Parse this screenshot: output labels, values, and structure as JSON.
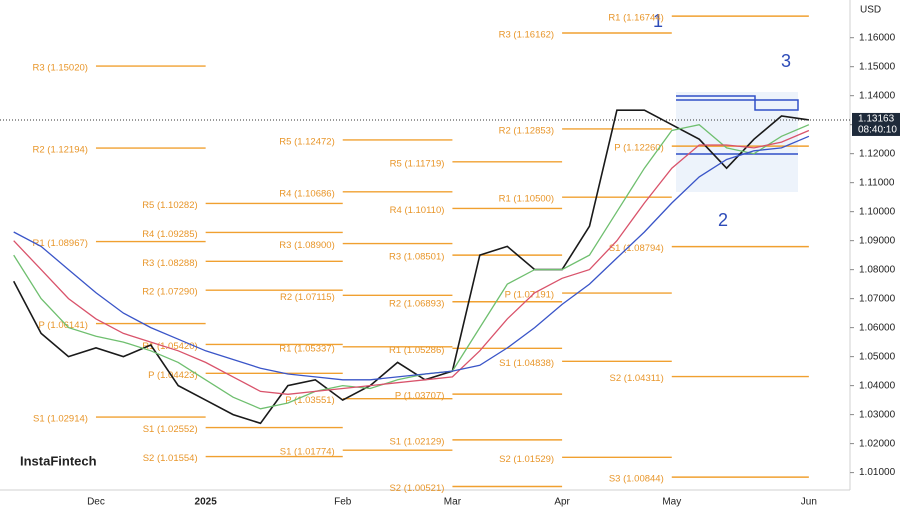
{
  "chart_data": {
    "type": "line",
    "currency": "USD",
    "watermark": "InstaFintech",
    "annotations": [
      "1",
      "2",
      "3"
    ],
    "last_price": 1.13163,
    "last_time": "08:40:10",
    "categories": [
      null,
      null,
      null,
      "Dec",
      null,
      null,
      null,
      "2025",
      null,
      null,
      null,
      null,
      "Feb",
      null,
      null,
      null,
      "Mar",
      null,
      null,
      null,
      "Apr",
      null,
      null,
      null,
      "May",
      null,
      null,
      null,
      null,
      "Jun",
      null
    ],
    "series": [
      {
        "color": "#1a1a1a",
        "values": [
          1.076,
          1.058,
          1.05,
          1.053,
          1.05,
          1.054,
          1.04,
          1.035,
          1.03,
          1.027,
          1.04,
          1.042,
          1.035,
          1.04,
          1.048,
          1.042,
          1.045,
          1.085,
          1.088,
          1.08,
          1.08,
          1.095,
          1.135,
          1.135,
          1.13,
          1.125,
          1.115,
          1.125,
          1.133,
          1.13163,
          null
        ]
      },
      {
        "color": "#6fbf6f",
        "values": [
          1.085,
          1.07,
          1.06,
          1.057,
          1.055,
          1.052,
          1.048,
          1.042,
          1.036,
          1.032,
          1.034,
          1.038,
          1.04,
          1.039,
          1.042,
          1.044,
          1.045,
          1.06,
          1.075,
          1.08,
          1.08,
          1.085,
          1.1,
          1.115,
          1.128,
          1.13,
          1.122,
          1.12,
          1.126,
          1.13,
          null
        ]
      },
      {
        "color": "#d9536b",
        "values": [
          1.09,
          1.08,
          1.07,
          1.063,
          1.058,
          1.055,
          1.052,
          1.048,
          1.043,
          1.038,
          1.037,
          1.038,
          1.039,
          1.04,
          1.041,
          1.042,
          1.043,
          1.052,
          1.063,
          1.072,
          1.077,
          1.08,
          1.09,
          1.103,
          1.115,
          1.123,
          1.123,
          1.122,
          1.124,
          1.128,
          null
        ]
      },
      {
        "color": "#3a55c8",
        "values": [
          1.093,
          1.088,
          1.08,
          1.072,
          1.065,
          1.06,
          1.056,
          1.052,
          1.049,
          1.046,
          1.044,
          1.043,
          1.042,
          1.042,
          1.043,
          1.044,
          1.045,
          1.047,
          1.053,
          1.06,
          1.068,
          1.075,
          1.084,
          1.093,
          1.103,
          1.112,
          1.118,
          1.121,
          1.122,
          1.126,
          null
        ]
      }
    ],
    "pivot_groups": [
      {
        "levels": [
          {
            "value": 1.1502,
            "label": "R3 (1.15020)"
          },
          {
            "value": 1.12194,
            "label": "R2 (1.12194)"
          },
          {
            "value": 1.08967,
            "label": "R1 (1.08967)"
          },
          {
            "value": 1.06141,
            "label": "P (1.06141)"
          },
          {
            "value": 1.02914,
            "label": "S1 (1.02914)"
          }
        ]
      },
      {
        "levels": [
          {
            "value": 1.10282,
            "label": "R5 (1.10282)"
          },
          {
            "value": 1.09285,
            "label": "R4 (1.09285)"
          },
          {
            "value": 1.08288,
            "label": "R3 (1.08288)"
          },
          {
            "value": 1.0729,
            "label": "R2 (1.07290)"
          },
          {
            "value": 1.0542,
            "label": "R1 (1.05420)"
          },
          {
            "value": 1.04423,
            "label": "P (1.04423)"
          },
          {
            "value": 1.02552,
            "label": "S1 (1.02552)"
          },
          {
            "value": 1.01554,
            "label": "S2 (1.01554)"
          }
        ]
      },
      {
        "levels": [
          {
            "value": 1.12472,
            "label": "R5 (1.12472)"
          },
          {
            "value": 1.10686,
            "label": "R4 (1.10686)"
          },
          {
            "value": 1.089,
            "label": "R3 (1.08900)"
          },
          {
            "value": 1.07115,
            "label": "R2 (1.07115)"
          },
          {
            "value": 1.05337,
            "label": "R1 (1.05337)"
          },
          {
            "value": 1.03551,
            "label": "P (1.03551)"
          },
          {
            "value": 1.01774,
            "label": "S1 (1.01774)"
          }
        ]
      },
      {
        "levels": [
          {
            "value": 1.11719,
            "label": "R5 (1.11719)"
          },
          {
            "value": 1.1011,
            "label": "R4 (1.10110)"
          },
          {
            "value": 1.08501,
            "label": "R3 (1.08501)"
          },
          {
            "value": 1.06893,
            "label": "R2 (1.06893)"
          },
          {
            "value": 1.05286,
            "label": "R1 (1.05286)"
          },
          {
            "value": 1.03707,
            "label": "P (1.03707)"
          },
          {
            "value": 1.02129,
            "label": "S1 (1.02129)"
          },
          {
            "value": 1.00521,
            "label": "S2 (1.00521)"
          }
        ]
      },
      {
        "levels": [
          {
            "value": 1.16162,
            "label": "R3 (1.16162)"
          },
          {
            "value": 1.12853,
            "label": "R2 (1.12853)"
          },
          {
            "value": 1.105,
            "label": "R1 (1.10500)"
          },
          {
            "value": 1.07191,
            "label": "P (1.07191)"
          },
          {
            "value": 1.04838,
            "label": "S1 (1.04838)"
          },
          {
            "value": 1.01529,
            "label": "S2 (1.01529)"
          }
        ]
      },
      {
        "levels": [
          {
            "value": 1.16744,
            "label": "R1 (1.16744)"
          },
          {
            "value": 1.1226,
            "label": "P (1.12260)"
          },
          {
            "value": 1.08794,
            "label": "S1 (1.08794)"
          },
          {
            "value": 1.04311,
            "label": "S2 (1.04311)"
          },
          {
            "value": 1.00844,
            "label": "S3 (1.00844)"
          }
        ]
      }
    ],
    "ylim": [
      1.004,
      1.173
    ],
    "yticks": [
      {
        "value": 1.01,
        "label": "1.01000"
      },
      {
        "value": 1.02,
        "label": "1.02000"
      },
      {
        "value": 1.03,
        "label": "1.03000"
      },
      {
        "value": 1.04,
        "label": "1.04000"
      },
      {
        "value": 1.05,
        "label": "1.05000"
      },
      {
        "value": 1.06,
        "label": "1.06000"
      },
      {
        "value": 1.07,
        "label": "1.07000"
      },
      {
        "value": 1.08,
        "label": "1.08000"
      },
      {
        "value": 1.09,
        "label": "1.09000"
      },
      {
        "value": 1.1,
        "label": "1.10000"
      },
      {
        "value": 1.11,
        "label": "1.11000"
      },
      {
        "value": 1.12,
        "label": "1.12000"
      },
      {
        "value": 1.13,
        "label": "1.13000"
      },
      {
        "value": 1.14,
        "label": "1.14000"
      },
      {
        "value": 1.15,
        "label": "1.15000"
      },
      {
        "value": 1.16,
        "label": "1.16000"
      }
    ]
  }
}
